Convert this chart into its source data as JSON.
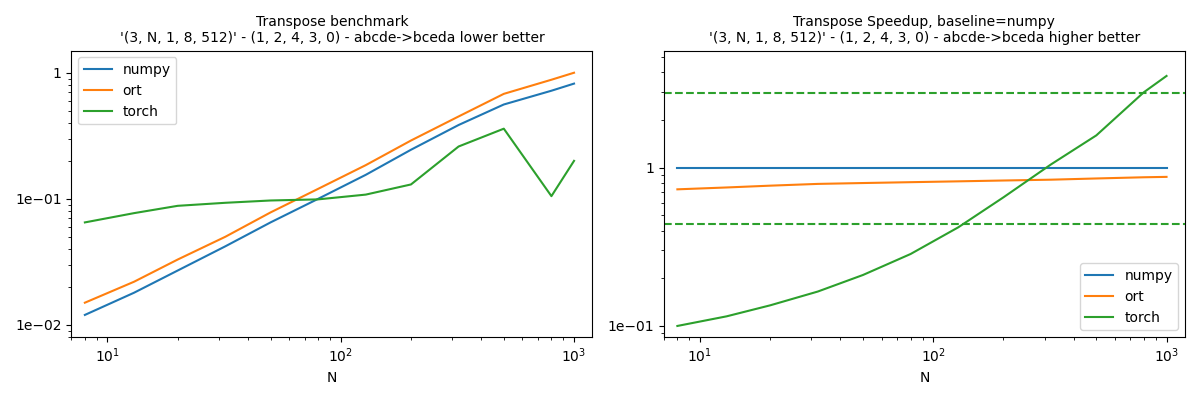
{
  "title1": "Transpose benchmark",
  "subtitle1": "'(3, N, 1, 8, 512)' - (1, 2, 4, 3, 0) - abcde->bceda lower better",
  "title2": "Transpose Speedup, baseline=numpy",
  "subtitle2": "'(3, N, 1, 8, 512)' - (1, 2, 4, 3, 0) - abcde->bceda higher better",
  "xlabel": "N",
  "N_values": [
    8,
    13,
    20,
    32,
    50,
    80,
    128,
    200,
    320,
    500,
    800,
    1000
  ],
  "left_numpy": [
    0.012,
    0.018,
    0.027,
    0.042,
    0.065,
    0.1,
    0.155,
    0.245,
    0.385,
    0.56,
    0.72,
    0.82
  ],
  "left_ort": [
    0.015,
    0.022,
    0.033,
    0.05,
    0.078,
    0.12,
    0.185,
    0.29,
    0.45,
    0.68,
    0.88,
    1.0
  ],
  "left_torch": [
    0.065,
    0.077,
    0.088,
    0.093,
    0.097,
    0.099,
    0.108,
    0.13,
    0.26,
    0.36,
    0.105,
    0.2
  ],
  "right_numpy": [
    1.0,
    1.0,
    1.0,
    1.0,
    1.0,
    1.0,
    1.0,
    1.0,
    1.0,
    1.0,
    1.0,
    1.0
  ],
  "right_ort": [
    0.73,
    0.75,
    0.77,
    0.79,
    0.8,
    0.81,
    0.82,
    0.83,
    0.84,
    0.855,
    0.87,
    0.875
  ],
  "right_torch": [
    0.1,
    0.115,
    0.135,
    0.165,
    0.21,
    0.285,
    0.42,
    0.65,
    1.05,
    1.6,
    3.0,
    3.8
  ],
  "torch_dashed_high": 2.95,
  "torch_dashed_low": 0.44,
  "color_numpy": "#1f77b4",
  "color_ort": "#ff7f0e",
  "color_torch": "#2ca02c",
  "left_ylim": [
    0.008,
    1.5
  ],
  "right_ylim": [
    0.085,
    5.5
  ],
  "xlim": [
    7,
    1200
  ]
}
